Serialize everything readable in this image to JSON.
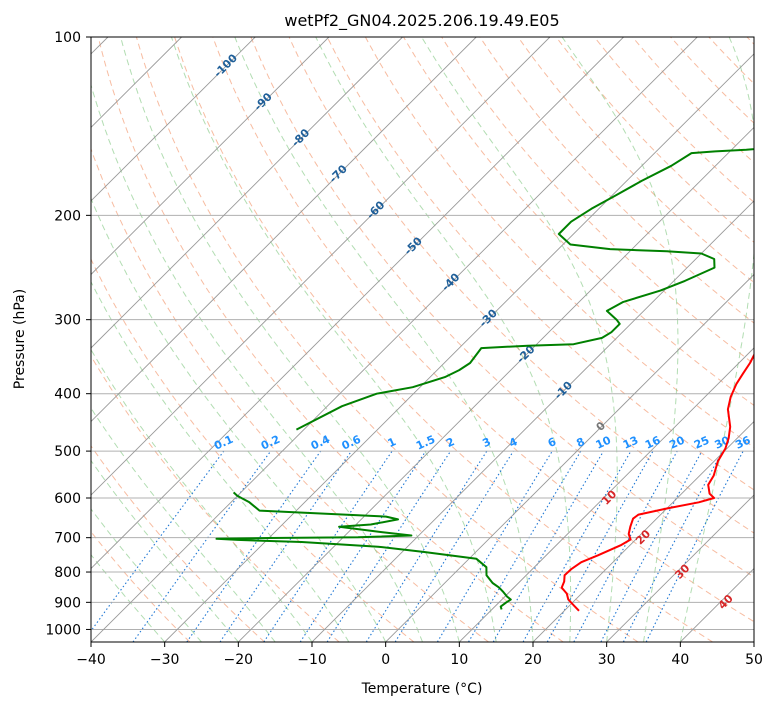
{
  "chart_data": {
    "type": "line",
    "title": "wetPf2_GN04.2025.206.19.49.E05",
    "xlabel": "Temperature (°C)",
    "ylabel": "Pressure (hPa)",
    "xlim": [
      -40,
      50
    ],
    "ylim": [
      1050,
      100
    ],
    "y_scale": "log",
    "x_ticks": [
      -40,
      -30,
      -20,
      -10,
      0,
      10,
      20,
      30,
      40,
      50
    ],
    "y_ticks": [
      100,
      200,
      300,
      400,
      500,
      600,
      700,
      800,
      900,
      1000
    ],
    "grid": true,
    "colors": {
      "temperature": "#ff0000",
      "dewpoint": "#008000",
      "isotherm": "#999999",
      "dry_adiabat": "#f4a582",
      "moist_adiabat": "#66bb66",
      "mixing_ratio": "#1f77d4",
      "isotherm_label": "#1f5f99",
      "dry_adiabat_label": "#d62728",
      "mixing_label": "#1e90ff"
    },
    "series": [
      {
        "points": [
          [
            22.0,
            930
          ],
          [
            20.5,
            910
          ],
          [
            19.0,
            890
          ],
          [
            18.0,
            870
          ],
          [
            16.5,
            850
          ],
          [
            16.0,
            830
          ],
          [
            15.2,
            810
          ],
          [
            15.3,
            790
          ],
          [
            15.7,
            770
          ],
          [
            17.0,
            750
          ],
          [
            18.8,
            720
          ],
          [
            19.3,
            705
          ],
          [
            18.3,
            690
          ],
          [
            17.5,
            670
          ],
          [
            16.8,
            650
          ],
          [
            17.0,
            640
          ],
          [
            20.0,
            625
          ],
          [
            23.5,
            610
          ],
          [
            25.0,
            600
          ],
          [
            23.8,
            590
          ],
          [
            22.4,
            570
          ],
          [
            21.9,
            550
          ],
          [
            20.5,
            520
          ],
          [
            19.8,
            495
          ],
          [
            18.8,
            475
          ],
          [
            17.5,
            455
          ],
          [
            14.8,
            425
          ],
          [
            13.5,
            405
          ],
          [
            12.5,
            385
          ],
          [
            12.0,
            370
          ],
          [
            11.5,
            355
          ],
          [
            10.5,
            335
          ],
          [
            9.8,
            318
          ],
          [
            8.5,
            300
          ],
          [
            7.0,
            285
          ],
          [
            6.0,
            270
          ],
          [
            5.8,
            255
          ],
          [
            5.8,
            245
          ],
          [
            6.3,
            235
          ],
          [
            6.8,
            225
          ],
          [
            7.3,
            210
          ],
          [
            8.5,
            200
          ],
          [
            10.0,
            187
          ],
          [
            10.8,
            175
          ],
          [
            10.5,
            163
          ],
          [
            9.5,
            152
          ],
          [
            8.5,
            142
          ],
          [
            7.6,
            133
          ],
          [
            7.8,
            124
          ],
          [
            8.7,
            116
          ],
          [
            8.4,
            108
          ],
          [
            8.1,
            100
          ]
        ]
      },
      {
        "points": [
          [
            11.3,
            925
          ],
          [
            10.8,
            915
          ],
          [
            11.0,
            900
          ],
          [
            11.2,
            890
          ],
          [
            10.3,
            880
          ],
          [
            9.2,
            865
          ],
          [
            8.0,
            850
          ],
          [
            6.5,
            835
          ],
          [
            4.6,
            810
          ],
          [
            3.5,
            785
          ],
          [
            1.0,
            760
          ],
          [
            -7.0,
            740
          ],
          [
            -14.0,
            725
          ],
          [
            -25.0,
            712
          ],
          [
            -34.0,
            706
          ],
          [
            -37.0,
            703
          ],
          [
            -30.0,
            701
          ],
          [
            -18.0,
            699
          ],
          [
            -11.0,
            694
          ],
          [
            -15.5,
            685
          ],
          [
            -22.0,
            671
          ],
          [
            -18.0,
            665
          ],
          [
            -15.0,
            652
          ],
          [
            -17.0,
            645
          ],
          [
            -35.0,
            630
          ],
          [
            -37.5,
            610
          ],
          [
            -40.0,
            595
          ],
          [
            -41.0,
            587
          ]
        ]
      },
      {
        "points": [
          [
            -41.0,
            460
          ],
          [
            -38.0,
            420
          ],
          [
            -35.0,
            400
          ],
          [
            -31.0,
            390
          ],
          [
            -28.0,
            375
          ],
          [
            -27.0,
            365
          ],
          [
            -26.5,
            355
          ],
          [
            -27.0,
            335
          ],
          [
            -21.0,
            332
          ],
          [
            -15.0,
            330
          ],
          [
            -12.0,
            322
          ],
          [
            -11.5,
            315
          ],
          [
            -11.5,
            305
          ],
          [
            -12.5,
            300
          ],
          [
            -15.0,
            290
          ],
          [
            -14.0,
            280
          ],
          [
            -10.5,
            268
          ],
          [
            -8.5,
            258
          ],
          [
            -6.3,
            245
          ],
          [
            -7.5,
            237
          ],
          [
            -10.0,
            232
          ],
          [
            -15.0,
            230
          ],
          [
            -23.0,
            228
          ],
          [
            -29.0,
            224
          ],
          [
            -32.0,
            215
          ],
          [
            -32.0,
            205
          ],
          [
            -31.0,
            195
          ],
          [
            -29.5,
            185
          ],
          [
            -28.0,
            175
          ],
          [
            -26.0,
            165
          ],
          [
            -25.0,
            157
          ],
          [
            -22.0,
            156
          ],
          [
            -18.0,
            155
          ],
          [
            -13.0,
            153
          ],
          [
            -9.0,
            150
          ],
          [
            -7.0,
            145
          ],
          [
            -6.5,
            135
          ],
          [
            -7.0,
            127
          ],
          [
            -7.0,
            120
          ],
          [
            -5.3,
            116
          ],
          [
            -2.0,
            112
          ],
          [
            0.8,
            106
          ],
          [
            1.5,
            102
          ],
          [
            2.0,
            100
          ]
        ]
      }
    ],
    "isotherm_labels": [
      "-100",
      "-90",
      "-80",
      "-70",
      "-60",
      "-50",
      "-40",
      "-30",
      "-20",
      "-10",
      "0"
    ],
    "dry_adiabat_labels": [
      "10",
      "20",
      "30",
      "40"
    ],
    "mixing_ratio_labels": [
      "0.1",
      "0.2",
      "0.4",
      "0.6",
      "1",
      "1.5",
      "2",
      "3",
      "4",
      "6",
      "8",
      "10",
      "13",
      "16",
      "20",
      "25",
      "30",
      "36"
    ]
  }
}
